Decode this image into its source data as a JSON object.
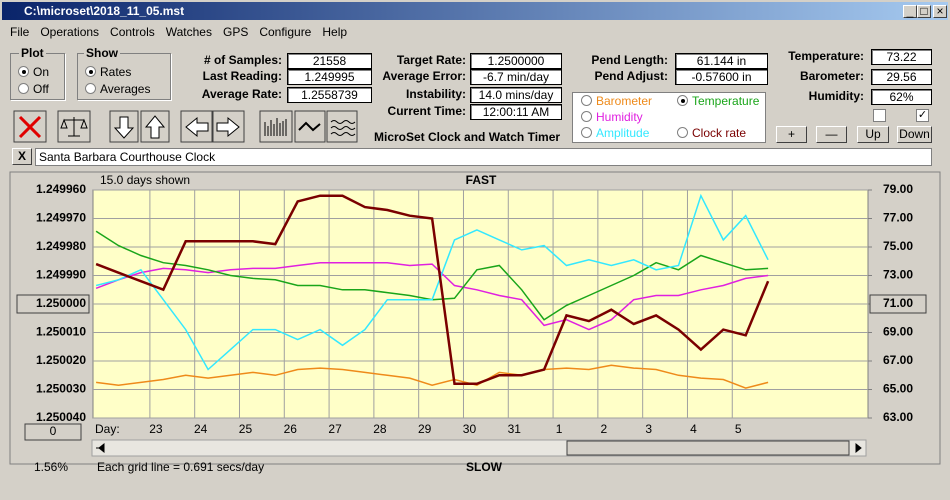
{
  "window": {
    "title": "C:\\microset\\2018_11_05.mst"
  },
  "menu": [
    "File",
    "Operations",
    "Controls",
    "Watches",
    "GPS",
    "Configure",
    "Help"
  ],
  "plot_group": {
    "title": "Plot",
    "options": [
      "On",
      "Off"
    ],
    "selected": 0
  },
  "show_group": {
    "title": "Show",
    "options": [
      "Rates",
      "Averages"
    ],
    "selected": 0
  },
  "fields_1": [
    {
      "label": "# of Samples:",
      "value": "21558"
    },
    {
      "label": "Last Reading:",
      "value": "1.249995"
    },
    {
      "label": "Average Rate:",
      "value": "1.2558739"
    }
  ],
  "fields_2": [
    {
      "label": "Target Rate:",
      "value": "1.2500000"
    },
    {
      "label": "Average Error:",
      "value": "-6.7 min/day"
    },
    {
      "label": "Instability:",
      "value": "14.0 mins/day"
    },
    {
      "label": "Current Time:",
      "value": "12:00:11 AM"
    }
  ],
  "fields_3": [
    {
      "label": "Pend Length:",
      "value": "61.144 in"
    },
    {
      "label": "Pend Adjust:",
      "value": "-0.57600 in"
    }
  ],
  "fields_4": [
    {
      "label": "Temperature:",
      "value": "73.22"
    },
    {
      "label": "Barometer:",
      "value": "29.56"
    },
    {
      "label": "Humidity:",
      "value": "62%"
    }
  ],
  "caption": "MicroSet Clock and Watch Timer",
  "selected_series": 2,
  "adjust_buttons": [
    "+",
    "—",
    "Up",
    "Down"
  ],
  "close_button": "X",
  "clock_name": "Santa Barbara Courthouse Clock",
  "chart_data": {
    "type": "line",
    "days_shown": "15.0 days shown",
    "top_label": "FAST",
    "bottom_label": "SLOW",
    "x_label": "Day:",
    "footnote": "Each grid line = 0.691 secs/day",
    "zoom": "1.56%",
    "scroll_button": "0",
    "x": [
      -1.2,
      -0.7,
      -0.2,
      0.3,
      0.8,
      1.3,
      1.8,
      2.3,
      2.8,
      3.3,
      3.8,
      4.3,
      4.8,
      5.3,
      5.8,
      6.3,
      6.8,
      7.3,
      7.8,
      8.3,
      8.8,
      9.3,
      9.8,
      10.3,
      10.8,
      11.3,
      11.8,
      12.3,
      12.8,
      13.3,
      13.8
    ],
    "xlim": [
      -1.27,
      16.03
    ],
    "xticks": [
      {
        "value": 0,
        "label": "23"
      },
      {
        "value": 1,
        "label": "24"
      },
      {
        "value": 2,
        "label": "25"
      },
      {
        "value": 3,
        "label": "26"
      },
      {
        "value": 4,
        "label": "27"
      },
      {
        "value": 5,
        "label": "28"
      },
      {
        "value": 6,
        "label": "29"
      },
      {
        "value": 7,
        "label": "30"
      },
      {
        "value": 8,
        "label": "31"
      },
      {
        "value": 9,
        "label": "1"
      },
      {
        "value": 10,
        "label": "2"
      },
      {
        "value": 11,
        "label": "3"
      },
      {
        "value": 12,
        "label": "4"
      },
      {
        "value": 13,
        "label": "5"
      }
    ],
    "ylim": [
      1.24996,
      1.25004
    ],
    "y_inverted": true,
    "yticks": [
      {
        "value": 1.24996,
        "label": "1.249960"
      },
      {
        "value": 1.24997,
        "label": "1.249970"
      },
      {
        "value": 1.24998,
        "label": "1.249980"
      },
      {
        "value": 1.24999,
        "label": "1.249990"
      },
      {
        "value": 1.25,
        "label": "1.250000"
      },
      {
        "value": 1.25001,
        "label": "1.250010"
      },
      {
        "value": 1.25002,
        "label": "1.250020"
      },
      {
        "value": 1.25003,
        "label": "1.250030"
      },
      {
        "value": 1.25004,
        "label": "1.250040"
      }
    ],
    "y2lim": [
      63,
      79
    ],
    "y2ticks": [
      {
        "value": 79,
        "label": "79.00"
      },
      {
        "value": 77,
        "label": "77.00"
      },
      {
        "value": 75,
        "label": "75.00"
      },
      {
        "value": 73,
        "label": "73.00"
      },
      {
        "value": 71,
        "label": "71.00"
      },
      {
        "value": 69,
        "label": "69.00"
      },
      {
        "value": 67,
        "label": "67.00"
      },
      {
        "value": 65,
        "label": "65.00"
      },
      {
        "value": 63,
        "label": "63.00"
      }
    ],
    "grid": true,
    "background": "#ffffc8",
    "series": [
      {
        "name": "Clock rate",
        "color": "#7a0000",
        "axis": "y",
        "values": [
          1.249986,
          1.249989,
          1.249992,
          1.249995,
          1.249978,
          1.249978,
          1.249978,
          1.249978,
          1.249979,
          1.249964,
          1.249962,
          1.249962,
          1.249966,
          1.249967,
          1.249969,
          1.24997,
          1.250028,
          1.250028,
          1.250025,
          1.250025,
          1.250023,
          1.250004,
          1.250006,
          1.250002,
          1.250007,
          1.250004,
          1.250009,
          1.250016,
          1.250009,
          1.250011,
          1.249992
        ]
      },
      {
        "name": "Amplitude",
        "color": "#33e8ff",
        "axis": "y2",
        "values": [
          72.3,
          72.7,
          73.4,
          71.3,
          69.2,
          66.4,
          67.8,
          69.2,
          69.2,
          68.5,
          69.2,
          68.1,
          69.2,
          71.3,
          71.3,
          71.3,
          75.5,
          76.2,
          75.5,
          74.8,
          75.1,
          73.7,
          74.1,
          73.7,
          74.1,
          73.4,
          73.7,
          78.6,
          75.5,
          77.2,
          74.1
        ]
      },
      {
        "name": "Temperature",
        "color": "#1aa51a",
        "axis": "y2",
        "values": [
          76.1,
          75.1,
          74.4,
          73.9,
          73.7,
          73.4,
          73.0,
          72.8,
          72.7,
          72.3,
          72.3,
          72.0,
          72.0,
          71.8,
          71.6,
          71.3,
          71.4,
          73.4,
          73.7,
          72.0,
          69.9,
          70.9,
          71.6,
          72.3,
          73.0,
          73.9,
          73.4,
          74.4,
          73.9,
          73.4,
          73.5
        ]
      },
      {
        "name": "Humidity",
        "color": "#e020e0",
        "axis": "y2",
        "values": [
          72.1,
          72.7,
          73.2,
          73.5,
          73.4,
          73.2,
          73.4,
          73.5,
          73.5,
          73.7,
          73.9,
          73.9,
          73.9,
          73.9,
          73.7,
          73.8,
          72.3,
          72.0,
          71.6,
          71.3,
          69.5,
          69.9,
          69.2,
          69.9,
          71.3,
          71.6,
          71.6,
          72.0,
          72.3,
          72.8,
          73.0
        ]
      },
      {
        "name": "Barometer",
        "color": "#ee8a1a",
        "axis": "y2",
        "values": [
          65.5,
          65.3,
          65.5,
          65.7,
          66.0,
          65.8,
          66.0,
          66.2,
          66.0,
          66.4,
          66.5,
          66.4,
          66.2,
          66.0,
          65.8,
          65.3,
          65.7,
          65.3,
          66.2,
          66.0,
          66.4,
          66.5,
          66.4,
          66.7,
          66.5,
          66.4,
          66.0,
          65.8,
          65.7,
          65.1,
          65.5
        ]
      }
    ]
  }
}
